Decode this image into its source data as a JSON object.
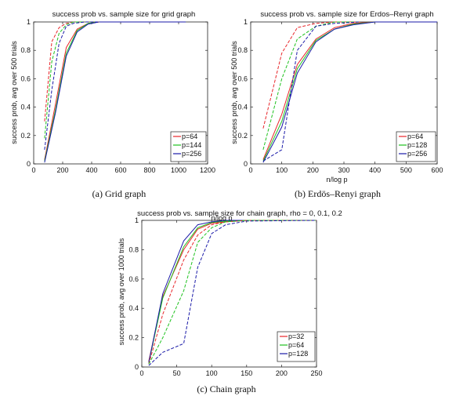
{
  "chart_data": [
    {
      "id": "grid",
      "type": "line",
      "title": "success prob vs. sample size for grid graph",
      "xlabel": "",
      "ylabel": "success prob, avg over 500 trials",
      "caption": "(a) Grid graph",
      "xlim": [
        0,
        1200
      ],
      "ylim": [
        0,
        1
      ],
      "xticks": [
        0,
        200,
        400,
        600,
        800,
        1000,
        1200
      ],
      "yticks": [
        0,
        0.2,
        0.4,
        0.6,
        0.8,
        1
      ],
      "ytick_labels": [
        "0",
        "0.2",
        "0.4",
        "0.6",
        "0.8",
        "1"
      ],
      "legend_position": "bottom-right",
      "series": [
        {
          "name": "p=64",
          "color": "#e8262a",
          "style": "solid",
          "x": [
            75,
            150,
            225,
            300,
            375,
            450,
            600,
            800,
            1050
          ],
          "y": [
            0.03,
            0.42,
            0.82,
            0.95,
            0.99,
            1.0,
            1.0,
            1.0,
            1.0
          ]
        },
        {
          "name": "p=144",
          "color": "#1fc21f",
          "style": "solid",
          "x": [
            75,
            150,
            225,
            300,
            375,
            450,
            600,
            800,
            1050
          ],
          "y": [
            0.02,
            0.38,
            0.78,
            0.94,
            0.99,
            1.0,
            1.0,
            1.0,
            1.0
          ]
        },
        {
          "name": "p=256",
          "color": "#1a1aa8",
          "style": "solid",
          "x": [
            75,
            150,
            225,
            300,
            375,
            450,
            600,
            800,
            1050
          ],
          "y": [
            0.01,
            0.36,
            0.76,
            0.93,
            0.985,
            1.0,
            1.0,
            1.0,
            1.0
          ]
        },
        {
          "name": "",
          "color": "#e8262a",
          "style": "dashed",
          "x": [
            75,
            125,
            175,
            225,
            275,
            350,
            450
          ],
          "y": [
            0.3,
            0.86,
            0.96,
            0.99,
            1.0,
            1.0,
            1.0
          ]
        },
        {
          "name": "",
          "color": "#1fc21f",
          "style": "dashed",
          "x": [
            75,
            125,
            175,
            225,
            275,
            350,
            450
          ],
          "y": [
            0.18,
            0.72,
            0.92,
            0.98,
            1.0,
            1.0,
            1.0
          ]
        },
        {
          "name": "",
          "color": "#1a1aa8",
          "style": "dashed",
          "x": [
            75,
            125,
            175,
            225,
            275,
            350,
            450
          ],
          "y": [
            0.1,
            0.52,
            0.85,
            0.97,
            0.99,
            1.0,
            1.0
          ]
        }
      ]
    },
    {
      "id": "erdos",
      "type": "line",
      "title": "success prob vs. sample size for Erdos–Renyi graph",
      "xlabel": "n/log p",
      "ylabel": "success prob, avg over 500 trials",
      "caption": "(b) Erdös–Renyi graph",
      "xlim": [
        0,
        600
      ],
      "ylim": [
        0,
        1
      ],
      "xticks": [
        0,
        100,
        200,
        300,
        400,
        500,
        600
      ],
      "yticks": [
        0,
        0.2,
        0.4,
        0.6,
        0.8,
        1
      ],
      "ytick_labels": [
        "0",
        "0.2",
        "0.4",
        "0.6",
        "0.8",
        "1"
      ],
      "legend_position": "bottom-right",
      "series": [
        {
          "name": "p=64",
          "color": "#e8262a",
          "style": "solid",
          "x": [
            40,
            100,
            150,
            210,
            270,
            330,
            400,
            500,
            600
          ],
          "y": [
            0.03,
            0.35,
            0.7,
            0.88,
            0.96,
            0.99,
            1.0,
            1.0,
            1.0
          ]
        },
        {
          "name": "p=128",
          "color": "#1fc21f",
          "style": "solid",
          "x": [
            40,
            100,
            150,
            210,
            270,
            330,
            400,
            500,
            600
          ],
          "y": [
            0.02,
            0.3,
            0.67,
            0.87,
            0.95,
            0.985,
            1.0,
            1.0,
            1.0
          ]
        },
        {
          "name": "p=256",
          "color": "#1a1aa8",
          "style": "solid",
          "x": [
            40,
            100,
            150,
            210,
            270,
            330,
            400,
            500,
            600
          ],
          "y": [
            0.01,
            0.26,
            0.64,
            0.86,
            0.95,
            0.98,
            1.0,
            1.0,
            1.0
          ]
        },
        {
          "name": "",
          "color": "#e8262a",
          "style": "dashed",
          "x": [
            40,
            100,
            150,
            210,
            270,
            350
          ],
          "y": [
            0.25,
            0.78,
            0.96,
            0.99,
            1.0,
            1.0
          ]
        },
        {
          "name": "",
          "color": "#1fc21f",
          "style": "dashed",
          "x": [
            40,
            100,
            150,
            210,
            270,
            350
          ],
          "y": [
            0.1,
            0.6,
            0.88,
            0.97,
            1.0,
            1.0
          ]
        },
        {
          "name": "",
          "color": "#1a1aa8",
          "style": "dashed",
          "x": [
            40,
            100,
            150,
            210,
            270,
            350
          ],
          "y": [
            0.02,
            0.1,
            0.8,
            0.97,
            0.99,
            1.0
          ]
        }
      ]
    },
    {
      "id": "chain",
      "type": "line",
      "title": "success prob vs. sample size for chain graph, rho = 0, 0.1, 0.2",
      "xlabel": "n/log p",
      "ylabel": "success prob, avg over 1000 trials",
      "caption": "(c) Chain graph",
      "xlim": [
        0,
        250
      ],
      "ylim": [
        0,
        1
      ],
      "xticks": [
        0,
        50,
        100,
        150,
        200,
        250
      ],
      "yticks": [
        0,
        0.2,
        0.4,
        0.6,
        0.8,
        1
      ],
      "ytick_labels": [
        "0",
        "0.2",
        "0.4",
        "0.6",
        "0.8",
        "1"
      ],
      "legend_position": "bottom-right",
      "series": [
        {
          "name": "p=32",
          "color": "#e8262a",
          "style": "solid",
          "x": [
            10,
            30,
            60,
            80,
            100,
            120,
            150,
            250
          ],
          "y": [
            0.04,
            0.48,
            0.8,
            0.94,
            0.98,
            0.99,
            1.0,
            1.0
          ]
        },
        {
          "name": "p=64",
          "color": "#1fc21f",
          "style": "solid",
          "x": [
            10,
            30,
            60,
            80,
            100,
            120,
            150,
            250
          ],
          "y": [
            0.03,
            0.47,
            0.82,
            0.95,
            0.985,
            0.995,
            1.0,
            1.0
          ]
        },
        {
          "name": "p=128",
          "color": "#1a1aa8",
          "style": "solid",
          "x": [
            10,
            30,
            60,
            80,
            100,
            120,
            150,
            250
          ],
          "y": [
            0.03,
            0.5,
            0.86,
            0.97,
            0.99,
            1.0,
            1.0,
            1.0
          ]
        },
        {
          "name": "",
          "color": "#e8262a",
          "style": "dashed",
          "x": [
            10,
            30,
            60,
            80,
            100,
            120,
            150,
            250
          ],
          "y": [
            0.02,
            0.36,
            0.73,
            0.9,
            0.97,
            0.99,
            1.0,
            1.0
          ]
        },
        {
          "name": "",
          "color": "#1fc21f",
          "style": "dashed",
          "x": [
            10,
            30,
            60,
            80,
            100,
            120,
            150,
            250
          ],
          "y": [
            0.02,
            0.2,
            0.52,
            0.85,
            0.95,
            0.99,
            1.0,
            1.0
          ]
        },
        {
          "name": "",
          "color": "#1a1aa8",
          "style": "dashed",
          "x": [
            10,
            30,
            60,
            80,
            100,
            120,
            150,
            250
          ],
          "y": [
            0.01,
            0.1,
            0.16,
            0.68,
            0.91,
            0.97,
            0.995,
            1.0
          ]
        }
      ]
    }
  ]
}
